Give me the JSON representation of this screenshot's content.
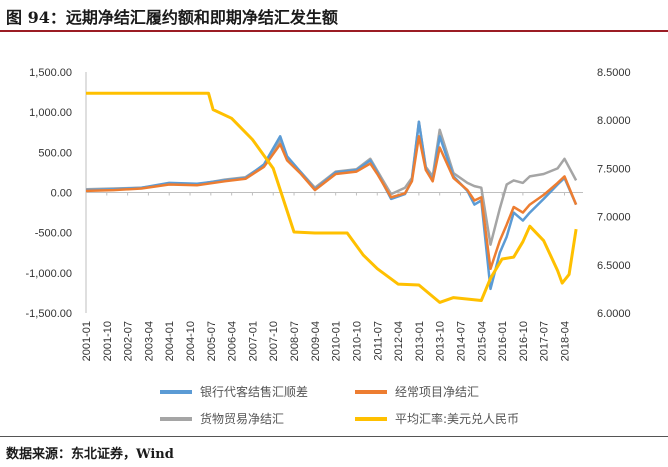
{
  "figure": {
    "title": "图 94：远期净结汇履约额和即期净结汇发生额",
    "source": "数据来源：东北证券，Wind"
  },
  "chart_data": {
    "type": "line",
    "title": "图 94：远期净结汇履约额和即期净结汇发生额",
    "xlabel": "",
    "ylabel": "",
    "x_ticks": [
      "2001-01",
      "2001-10",
      "2002-07",
      "2003-04",
      "2004-01",
      "2004-10",
      "2005-07",
      "2006-04",
      "2007-01",
      "2007-10",
      "2008-07",
      "2009-04",
      "2010-01",
      "2010-10",
      "2011-07",
      "2012-04",
      "2013-01",
      "2013-10",
      "2014-07",
      "2015-04",
      "2016-01",
      "2016-10",
      "2017-07",
      "2018-04"
    ],
    "y_left": {
      "min": -1500,
      "max": 1500,
      "ticks": [
        "1,500.00",
        "1,000.00",
        "500.00",
        "0.00",
        "-500.00",
        "-1,000.00",
        "-1,500.00"
      ],
      "tick_values": [
        1500,
        1000,
        500,
        0,
        -500,
        -1000,
        -1500
      ]
    },
    "y_right": {
      "min": 6.0,
      "max": 8.5,
      "ticks": [
        "8.5000",
        "8.0000",
        "7.5000",
        "7.0000",
        "6.5000",
        "6.0000"
      ],
      "tick_values": [
        8.5,
        8.0,
        7.5,
        7.0,
        6.5,
        6.0
      ]
    },
    "grid": false,
    "legend_position": "bottom",
    "series": [
      {
        "name": "银行代客结售汇顺差",
        "axis": "left",
        "color": "#5b9bd5",
        "points": [
          [
            "2001-01",
            30
          ],
          [
            "2002-01",
            40
          ],
          [
            "2003-01",
            60
          ],
          [
            "2004-01",
            120
          ],
          [
            "2005-01",
            110
          ],
          [
            "2006-01",
            150
          ],
          [
            "2006-10",
            180
          ],
          [
            "2007-06",
            350
          ],
          [
            "2008-01",
            700
          ],
          [
            "2008-04",
            450
          ],
          [
            "2008-10",
            250
          ],
          [
            "2009-04",
            40
          ],
          [
            "2010-01",
            250
          ],
          [
            "2010-10",
            280
          ],
          [
            "2011-04",
            400
          ],
          [
            "2011-07",
            250
          ],
          [
            "2012-01",
            -80
          ],
          [
            "2012-07",
            -20
          ],
          [
            "2012-10",
            150
          ],
          [
            "2013-01",
            880
          ],
          [
            "2013-04",
            300
          ],
          [
            "2013-07",
            150
          ],
          [
            "2013-10",
            700
          ],
          [
            "2014-04",
            200
          ],
          [
            "2014-10",
            20
          ],
          [
            "2015-01",
            -150
          ],
          [
            "2015-04",
            -100
          ],
          [
            "2015-08",
            -1200
          ],
          [
            "2015-12",
            -750
          ],
          [
            "2016-03",
            -550
          ],
          [
            "2016-06",
            -250
          ],
          [
            "2016-10",
            -350
          ],
          [
            "2017-01",
            -250
          ],
          [
            "2017-07",
            -80
          ],
          [
            "2018-01",
            100
          ],
          [
            "2018-04",
            180
          ],
          [
            "2018-09",
            -150
          ]
        ]
      },
      {
        "name": "经常项目净结汇",
        "axis": "left",
        "color": "#ed7d31",
        "points": [
          [
            "2001-01",
            20
          ],
          [
            "2002-01",
            30
          ],
          [
            "2003-01",
            50
          ],
          [
            "2004-01",
            100
          ],
          [
            "2005-01",
            90
          ],
          [
            "2006-01",
            140
          ],
          [
            "2006-10",
            170
          ],
          [
            "2007-06",
            320
          ],
          [
            "2008-01",
            600
          ],
          [
            "2008-04",
            400
          ],
          [
            "2008-10",
            230
          ],
          [
            "2009-04",
            30
          ],
          [
            "2010-01",
            230
          ],
          [
            "2010-10",
            260
          ],
          [
            "2011-04",
            360
          ],
          [
            "2011-07",
            230
          ],
          [
            "2012-01",
            -60
          ],
          [
            "2012-07",
            -10
          ],
          [
            "2012-10",
            140
          ],
          [
            "2013-01",
            700
          ],
          [
            "2013-04",
            280
          ],
          [
            "2013-07",
            140
          ],
          [
            "2013-10",
            560
          ],
          [
            "2014-04",
            180
          ],
          [
            "2014-10",
            30
          ],
          [
            "2015-01",
            -100
          ],
          [
            "2015-04",
            -60
          ],
          [
            "2015-08",
            -950
          ],
          [
            "2015-12",
            -600
          ],
          [
            "2016-03",
            -400
          ],
          [
            "2016-06",
            -180
          ],
          [
            "2016-10",
            -250
          ],
          [
            "2017-01",
            -150
          ],
          [
            "2017-07",
            -30
          ],
          [
            "2018-01",
            120
          ],
          [
            "2018-04",
            200
          ],
          [
            "2018-09",
            -150
          ]
        ]
      },
      {
        "name": "货物贸易净结汇",
        "axis": "left",
        "color": "#a5a5a5",
        "points": [
          [
            "2001-01",
            40
          ],
          [
            "2002-01",
            50
          ],
          [
            "2003-01",
            60
          ],
          [
            "2004-01",
            110
          ],
          [
            "2005-01",
            100
          ],
          [
            "2006-01",
            160
          ],
          [
            "2006-10",
            190
          ],
          [
            "2007-06",
            340
          ],
          [
            "2008-01",
            650
          ],
          [
            "2008-04",
            430
          ],
          [
            "2008-10",
            250
          ],
          [
            "2009-04",
            60
          ],
          [
            "2010-01",
            260
          ],
          [
            "2010-10",
            290
          ],
          [
            "2011-04",
            420
          ],
          [
            "2011-07",
            270
          ],
          [
            "2012-01",
            -20
          ],
          [
            "2012-07",
            60
          ],
          [
            "2012-10",
            180
          ],
          [
            "2013-01",
            880
          ],
          [
            "2013-04",
            320
          ],
          [
            "2013-07",
            200
          ],
          [
            "2013-10",
            780
          ],
          [
            "2014-04",
            240
          ],
          [
            "2014-10",
            120
          ],
          [
            "2015-01",
            80
          ],
          [
            "2015-04",
            60
          ],
          [
            "2015-08",
            -650
          ],
          [
            "2015-12",
            -200
          ],
          [
            "2016-03",
            100
          ],
          [
            "2016-06",
            150
          ],
          [
            "2016-10",
            120
          ],
          [
            "2017-01",
            200
          ],
          [
            "2017-07",
            230
          ],
          [
            "2018-01",
            300
          ],
          [
            "2018-04",
            420
          ],
          [
            "2018-09",
            150
          ]
        ]
      },
      {
        "name": "平均汇率:美元兑人民币",
        "axis": "right",
        "color": "#ffc000",
        "points": [
          [
            "2001-01",
            8.28
          ],
          [
            "2003-01",
            8.28
          ],
          [
            "2005-06",
            8.28
          ],
          [
            "2005-08",
            8.11
          ],
          [
            "2006-04",
            8.02
          ],
          [
            "2007-01",
            7.8
          ],
          [
            "2007-10",
            7.5
          ],
          [
            "2008-07",
            6.84
          ],
          [
            "2009-04",
            6.83
          ],
          [
            "2010-06",
            6.83
          ],
          [
            "2011-01",
            6.6
          ],
          [
            "2011-07",
            6.46
          ],
          [
            "2012-04",
            6.3
          ],
          [
            "2013-01",
            6.29
          ],
          [
            "2013-10",
            6.11
          ],
          [
            "2014-04",
            6.16
          ],
          [
            "2015-04",
            6.13
          ],
          [
            "2015-08",
            6.36
          ],
          [
            "2016-01",
            6.56
          ],
          [
            "2016-06",
            6.58
          ],
          [
            "2016-10",
            6.74
          ],
          [
            "2017-01",
            6.9
          ],
          [
            "2017-07",
            6.75
          ],
          [
            "2018-01",
            6.44
          ],
          [
            "2018-03",
            6.31
          ],
          [
            "2018-06",
            6.4
          ],
          [
            "2018-09",
            6.87
          ]
        ]
      }
    ]
  }
}
